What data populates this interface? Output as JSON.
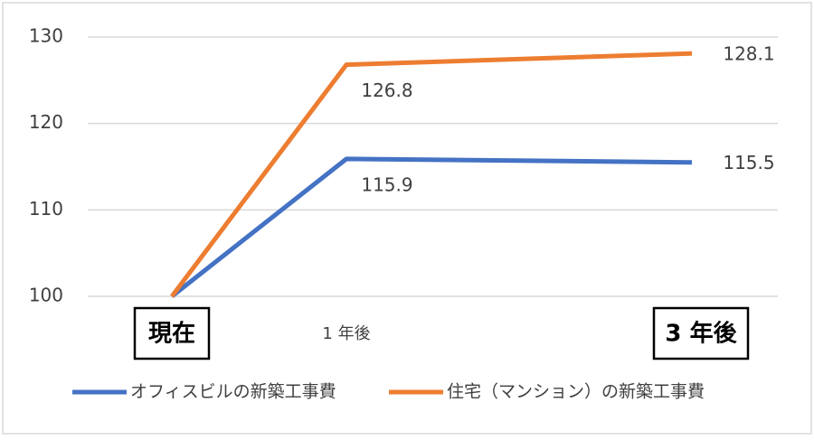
{
  "chart_data": {
    "type": "line",
    "categories": [
      "現在",
      "1 年後",
      "3 年後"
    ],
    "series": [
      {
        "name": "オフィスビルの新築工事費",
        "color": "#4472c4",
        "values": [
          100,
          115.9,
          115.5
        ]
      },
      {
        "name": "住宅（マンション）の新築工事費",
        "color": "#ed7d31",
        "values": [
          100,
          126.8,
          128.1
        ]
      }
    ],
    "ylim": [
      100,
      130
    ],
    "yticks": [
      100,
      110,
      120,
      130
    ],
    "grid": true,
    "legend": "bottom"
  }
}
